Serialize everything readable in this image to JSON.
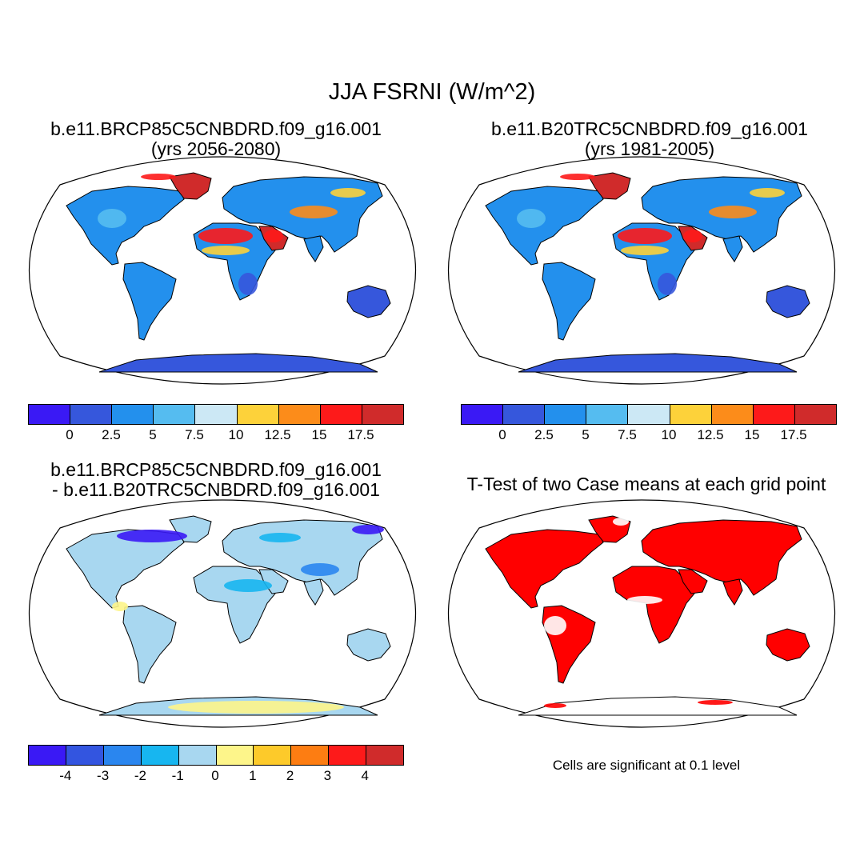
{
  "title": "JJA FSRNI (W/m^2)",
  "panels": [
    {
      "id": "p1",
      "title_line1": "b.e11.BRCP85C5CNBDRD.f09_g16.001",
      "title_line2": "(yrs 2056-2080)",
      "field": "mean_future"
    },
    {
      "id": "p2",
      "title_line1": "b.e11.B20TRC5CNBDRD.f09_g16.001",
      "title_line2": "(yrs 1981-2005)",
      "field": "mean_hist"
    },
    {
      "id": "p3",
      "title_line1": "b.e11.BRCP85C5CNBDRD.f09_g16.001",
      "title_line2": "- b.e11.B20TRC5CNBDRD.f09_g16.001",
      "field": "difference"
    },
    {
      "id": "p4",
      "title_line1": "T-Test of two Case means at each grid point",
      "title_line2": "",
      "field": "significance"
    }
  ],
  "note": "Cells are significant at 0.1 level",
  "colorbars": {
    "mean": {
      "colors": [
        "#3a19f5",
        "#3657dc",
        "#2390ed",
        "#55bcf0",
        "#cce8f5",
        "#fdd23a",
        "#fc8c1a",
        "#fd1a1a",
        "#d02b2b"
      ],
      "labels": [
        "0",
        "2.5",
        "5",
        "7.5",
        "10",
        "12.5",
        "15",
        "17.5"
      ]
    },
    "diff": {
      "colors": [
        "#3a19f5",
        "#3355e0",
        "#2a86ef",
        "#17b6f0",
        "#a8d7f0",
        "#fdf58a",
        "#fdca2a",
        "#fd7d12",
        "#fd1a1a",
        "#d02b2b"
      ],
      "labels": [
        "-4",
        "-3",
        "-2",
        "-1",
        "0",
        "1",
        "2",
        "3",
        "4"
      ]
    },
    "significant_color": "#ff0000"
  }
}
